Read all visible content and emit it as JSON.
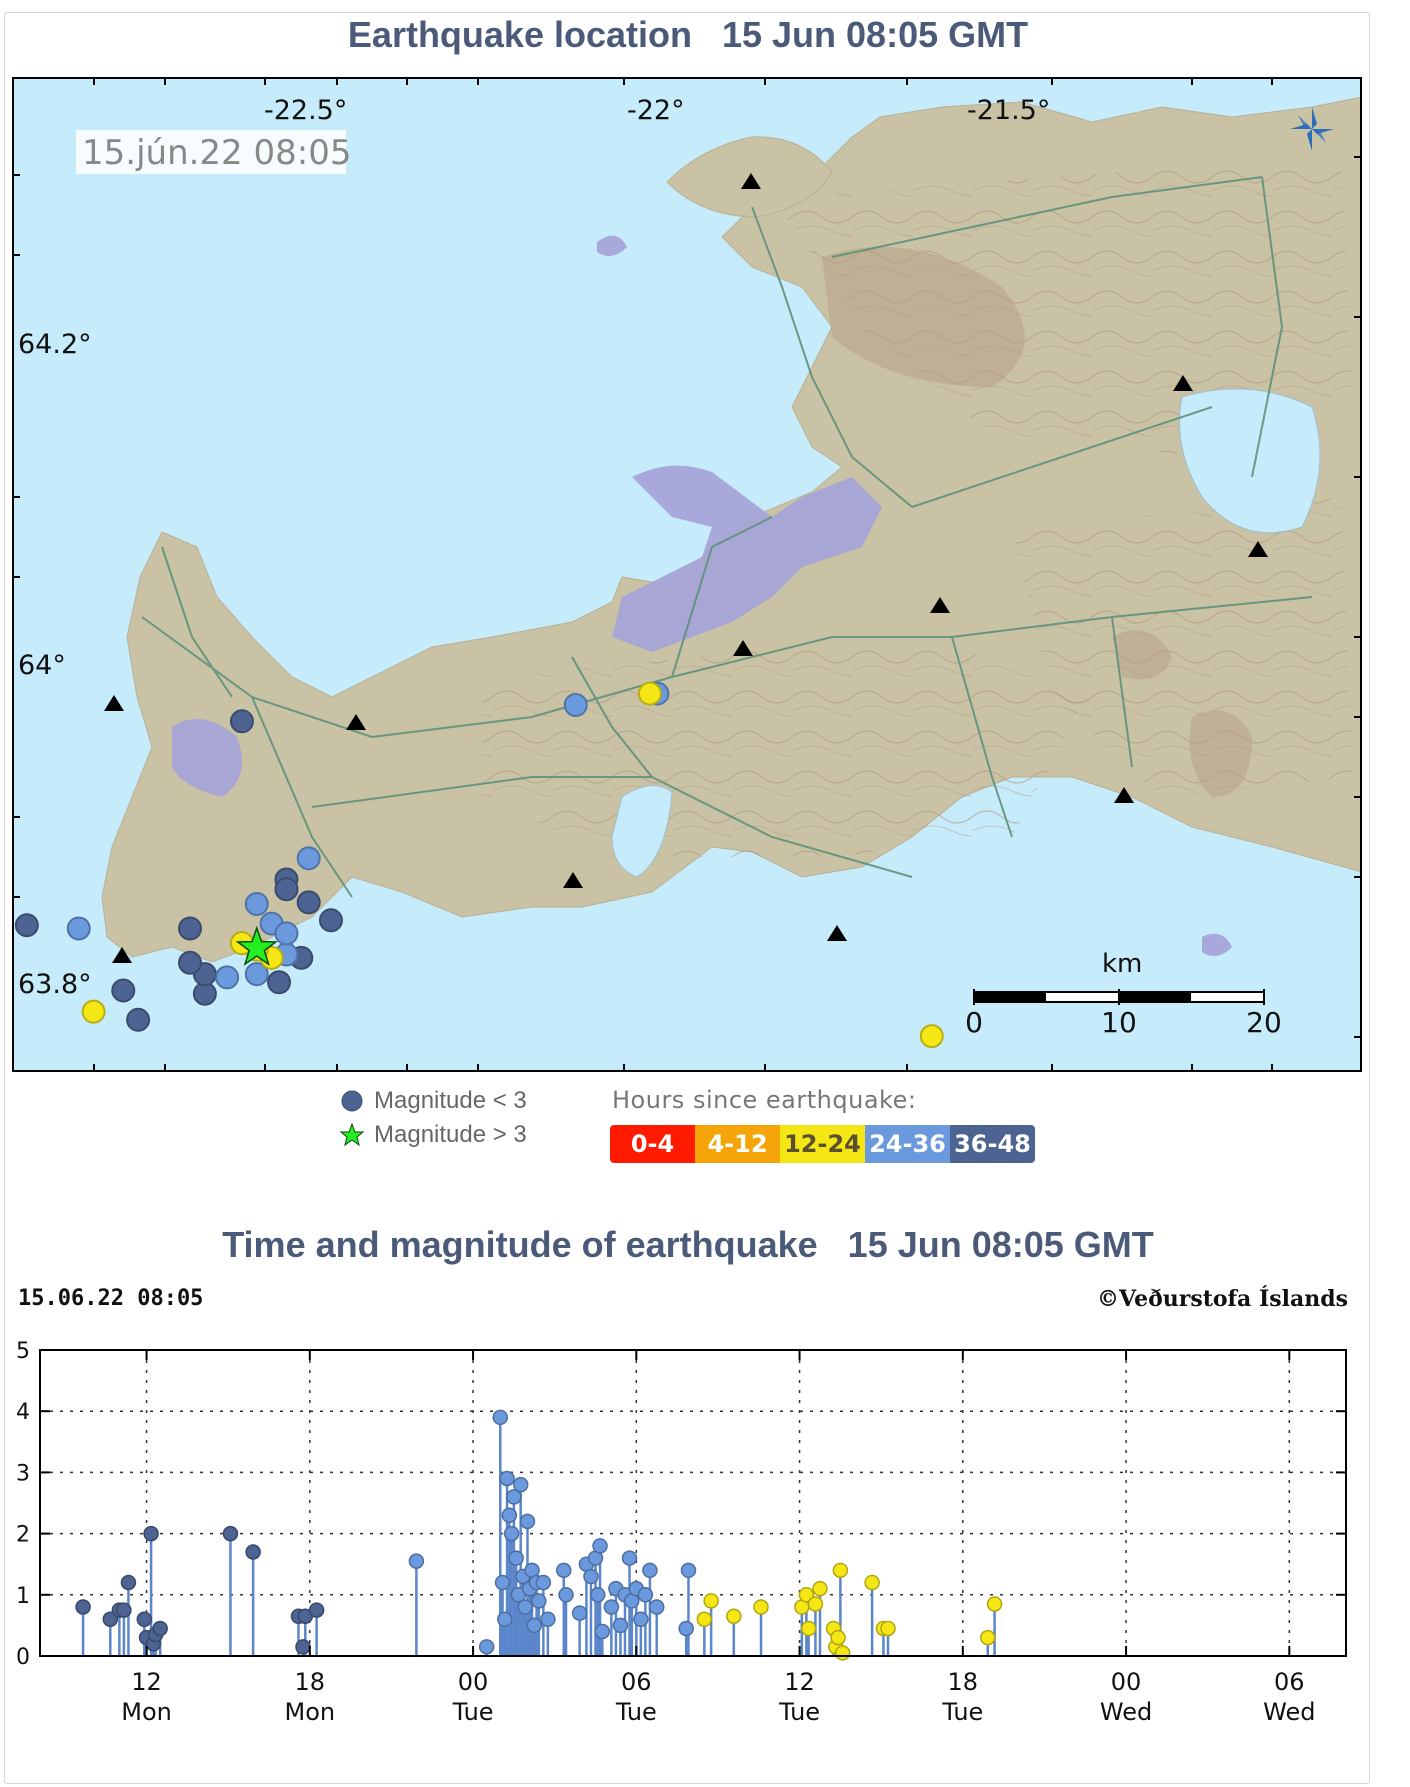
{
  "map_panel": {
    "title": "Earthquake location   15 Jun 08:05 GMT",
    "timestamp_box": "15.jún.22 08:05",
    "lon_labels": [
      "-22.5°",
      "-22°",
      "-21.5°"
    ],
    "lat_labels": [
      "64.2°",
      "64°",
      "63.8°"
    ],
    "scale_bar": {
      "unit": "km",
      "ticks": [
        "0",
        "10",
        "20"
      ]
    },
    "colors": {
      "sea": "#c6ecfc",
      "land": "#c9c2a4",
      "urban": "#a7a4d8",
      "roads": "#5e927a",
      "contours": "#b59a84"
    },
    "icons": [
      "compass-rose-icon",
      "seismic-station-icon"
    ]
  },
  "legend": {
    "mag_small": "Magnitude < 3",
    "mag_large": "Magnitude > 3",
    "hours_title": "Hours since earthquake:",
    "hours_bins": [
      {
        "label": "0-4",
        "color": "#ff1a00"
      },
      {
        "label": "4-12",
        "color": "#f5a50a"
      },
      {
        "label": "12-24",
        "color": "#f5e616"
      },
      {
        "label": "24-36",
        "color": "#6b99dd"
      },
      {
        "label": "36-48",
        "color": "#4d6493"
      }
    ]
  },
  "timeseries_panel": {
    "title": "Time and magnitude of earthquake   15 Jun 08:05 GMT",
    "stamp_left": "15.06.22 08:05",
    "stamp_right": "©Veðurstofa Íslands"
  },
  "chart_data": [
    {
      "type": "scatter",
      "title": "Earthquake location   15 Jun 08:05 GMT",
      "x_ticks": [
        "-22.5°",
        "-22°",
        "-21.5°"
      ],
      "y_ticks": [
        "64.2°",
        "64°",
        "63.8°"
      ],
      "xlim": [
        -22.88,
        -21.06
      ],
      "ylim": [
        63.74,
        64.35
      ],
      "series": [
        {
          "name": "36-48",
          "color": "#4d6493",
          "points": [
            [
              -22.86,
              63.83
            ],
            [
              -22.62,
              63.788
            ],
            [
              -22.62,
              63.8
            ],
            [
              -22.64,
              63.807
            ],
            [
              -22.64,
              63.828
            ],
            [
              -22.71,
              63.772
            ],
            [
              -22.51,
              63.858
            ],
            [
              -22.51,
              63.852
            ],
            [
              -22.52,
              63.795
            ],
            [
              -22.73,
              63.79
            ],
            [
              -22.49,
              63.81
            ],
            [
              -22.57,
              63.955
            ],
            [
              -22.45,
              63.833
            ],
            [
              -22.48,
              63.844
            ]
          ]
        },
        {
          "name": "24-36",
          "color": "#6b99dd",
          "points": [
            [
              -22.79,
              63.828
            ],
            [
              -22.59,
              63.798
            ],
            [
              -22.55,
              63.843
            ],
            [
              -22.48,
              63.871
            ],
            [
              -22.53,
              63.831
            ],
            [
              -22.51,
              63.812
            ],
            [
              -22.55,
              63.8
            ],
            [
              -22.51,
              63.825
            ],
            [
              -22.01,
              63.972
            ],
            [
              -22.12,
              63.965
            ]
          ]
        },
        {
          "name": "12-24",
          "color": "#f5e616",
          "points": [
            [
              -22.77,
              63.777
            ],
            [
              -22.02,
              63.972
            ],
            [
              -21.64,
              63.762
            ],
            [
              -22.53,
              63.81
            ],
            [
              -22.55,
              63.815
            ],
            [
              -22.57,
              63.819
            ]
          ]
        },
        {
          "name": "Magnitude > 3",
          "color": "#22ee22",
          "points": [
            [
              -22.55,
              63.816
            ]
          ]
        }
      ]
    },
    {
      "type": "scatter",
      "title": "Time and magnitude of earthquake   15 Jun 08:05 GMT",
      "xlabel": "",
      "ylabel": "",
      "ylim": [
        0,
        5
      ],
      "y_ticks": [
        0,
        1,
        2,
        3,
        4,
        5
      ],
      "xlim": [
        "2022-06-13T08:05",
        "2022-06-15T08:05"
      ],
      "x_ticks": [
        {
          "time": "2022-06-13T12:00",
          "hour": "12",
          "day": "Mon"
        },
        {
          "time": "2022-06-13T18:00",
          "hour": "18",
          "day": "Mon"
        },
        {
          "time": "2022-06-14T00:00",
          "hour": "00",
          "day": "Tue"
        },
        {
          "time": "2022-06-14T06:00",
          "hour": "06",
          "day": "Tue"
        },
        {
          "time": "2022-06-14T12:00",
          "hour": "12",
          "day": "Tue"
        },
        {
          "time": "2022-06-14T18:00",
          "hour": "18",
          "day": "Tue"
        },
        {
          "time": "2022-06-15T00:00",
          "hour": "00",
          "day": "Wed"
        },
        {
          "time": "2022-06-15T06:00",
          "hour": "06",
          "day": "Wed"
        }
      ],
      "grid": true,
      "series": [
        {
          "name": "36-48",
          "color": "#4d6493",
          "points": [
            [
              "2022-06-13T09:40",
              0.8
            ],
            [
              "2022-06-13T10:40",
              0.6
            ],
            [
              "2022-06-13T11:00",
              0.75
            ],
            [
              "2022-06-13T11:10",
              0.75
            ],
            [
              "2022-06-13T11:20",
              1.2
            ],
            [
              "2022-06-13T11:55",
              0.6
            ],
            [
              "2022-06-13T12:00",
              0.3
            ],
            [
              "2022-06-13T12:10",
              2.0
            ],
            [
              "2022-06-13T12:15",
              0.2
            ],
            [
              "2022-06-13T12:20",
              0.35
            ],
            [
              "2022-06-13T12:30",
              0.45
            ],
            [
              "2022-06-13T15:05",
              2.0
            ],
            [
              "2022-06-13T15:55",
              1.7
            ],
            [
              "2022-06-13T17:35",
              0.65
            ],
            [
              "2022-06-13T17:45",
              0.15
            ],
            [
              "2022-06-13T17:50",
              0.65
            ],
            [
              "2022-06-13T18:15",
              0.75
            ]
          ]
        },
        {
          "name": "24-36",
          "color": "#6b99dd",
          "points": [
            [
              "2022-06-13T21:55",
              1.55
            ],
            [
              "2022-06-14T00:30",
              0.15
            ],
            [
              "2022-06-14T01:00",
              3.9
            ],
            [
              "2022-06-14T01:05",
              1.2
            ],
            [
              "2022-06-14T01:10",
              0.6
            ],
            [
              "2022-06-14T01:15",
              2.9
            ],
            [
              "2022-06-14T01:20",
              2.3
            ],
            [
              "2022-06-14T01:25",
              2.0
            ],
            [
              "2022-06-14T01:30",
              2.6
            ],
            [
              "2022-06-14T01:35",
              1.6
            ],
            [
              "2022-06-14T01:40",
              1.0
            ],
            [
              "2022-06-14T01:45",
              2.8
            ],
            [
              "2022-06-14T01:50",
              1.3
            ],
            [
              "2022-06-14T01:55",
              0.8
            ],
            [
              "2022-06-14T02:00",
              2.2
            ],
            [
              "2022-06-14T02:05",
              1.1
            ],
            [
              "2022-06-14T02:10",
              1.4
            ],
            [
              "2022-06-14T02:15",
              0.5
            ],
            [
              "2022-06-14T02:20",
              1.2
            ],
            [
              "2022-06-14T02:25",
              0.9
            ],
            [
              "2022-06-14T02:35",
              1.2
            ],
            [
              "2022-06-14T02:45",
              0.6
            ],
            [
              "2022-06-14T03:20",
              1.4
            ],
            [
              "2022-06-14T03:25",
              1.0
            ],
            [
              "2022-06-14T03:55",
              0.7
            ],
            [
              "2022-06-14T04:10",
              1.5
            ],
            [
              "2022-06-14T04:20",
              1.3
            ],
            [
              "2022-06-14T04:30",
              1.6
            ],
            [
              "2022-06-14T04:35",
              1.0
            ],
            [
              "2022-06-14T04:40",
              1.8
            ],
            [
              "2022-06-14T04:45",
              0.4
            ],
            [
              "2022-06-14T05:05",
              0.8
            ],
            [
              "2022-06-14T05:15",
              1.1
            ],
            [
              "2022-06-14T05:25",
              0.5
            ],
            [
              "2022-06-14T05:35",
              1.0
            ],
            [
              "2022-06-14T05:45",
              1.6
            ],
            [
              "2022-06-14T05:50",
              0.9
            ],
            [
              "2022-06-14T06:00",
              1.1
            ],
            [
              "2022-06-14T06:10",
              0.6
            ],
            [
              "2022-06-14T06:20",
              1.0
            ],
            [
              "2022-06-14T06:30",
              1.4
            ],
            [
              "2022-06-14T06:45",
              0.8
            ],
            [
              "2022-06-14T07:55",
              1.4
            ],
            [
              "2022-06-14T07:50",
              0.45
            ]
          ]
        },
        {
          "name": "12-24",
          "color": "#f5e616",
          "points": [
            [
              "2022-06-14T08:30",
              0.6
            ],
            [
              "2022-06-14T08:45",
              0.9
            ],
            [
              "2022-06-14T09:35",
              0.65
            ],
            [
              "2022-06-14T10:35",
              0.8
            ],
            [
              "2022-06-14T12:05",
              0.8
            ],
            [
              "2022-06-14T12:15",
              1.0
            ],
            [
              "2022-06-14T12:20",
              0.45
            ],
            [
              "2022-06-14T12:35",
              0.85
            ],
            [
              "2022-06-14T12:45",
              1.1
            ],
            [
              "2022-06-14T13:15",
              0.45
            ],
            [
              "2022-06-14T13:20",
              0.15
            ],
            [
              "2022-06-14T13:25",
              0.3
            ],
            [
              "2022-06-14T13:30",
              1.4
            ],
            [
              "2022-06-14T13:35",
              0.05
            ],
            [
              "2022-06-14T14:40",
              1.2
            ],
            [
              "2022-06-14T15:05",
              0.45
            ],
            [
              "2022-06-14T15:15",
              0.45
            ],
            [
              "2022-06-14T18:55",
              0.3
            ],
            [
              "2022-06-14T19:10",
              0.85
            ]
          ]
        }
      ]
    }
  ]
}
